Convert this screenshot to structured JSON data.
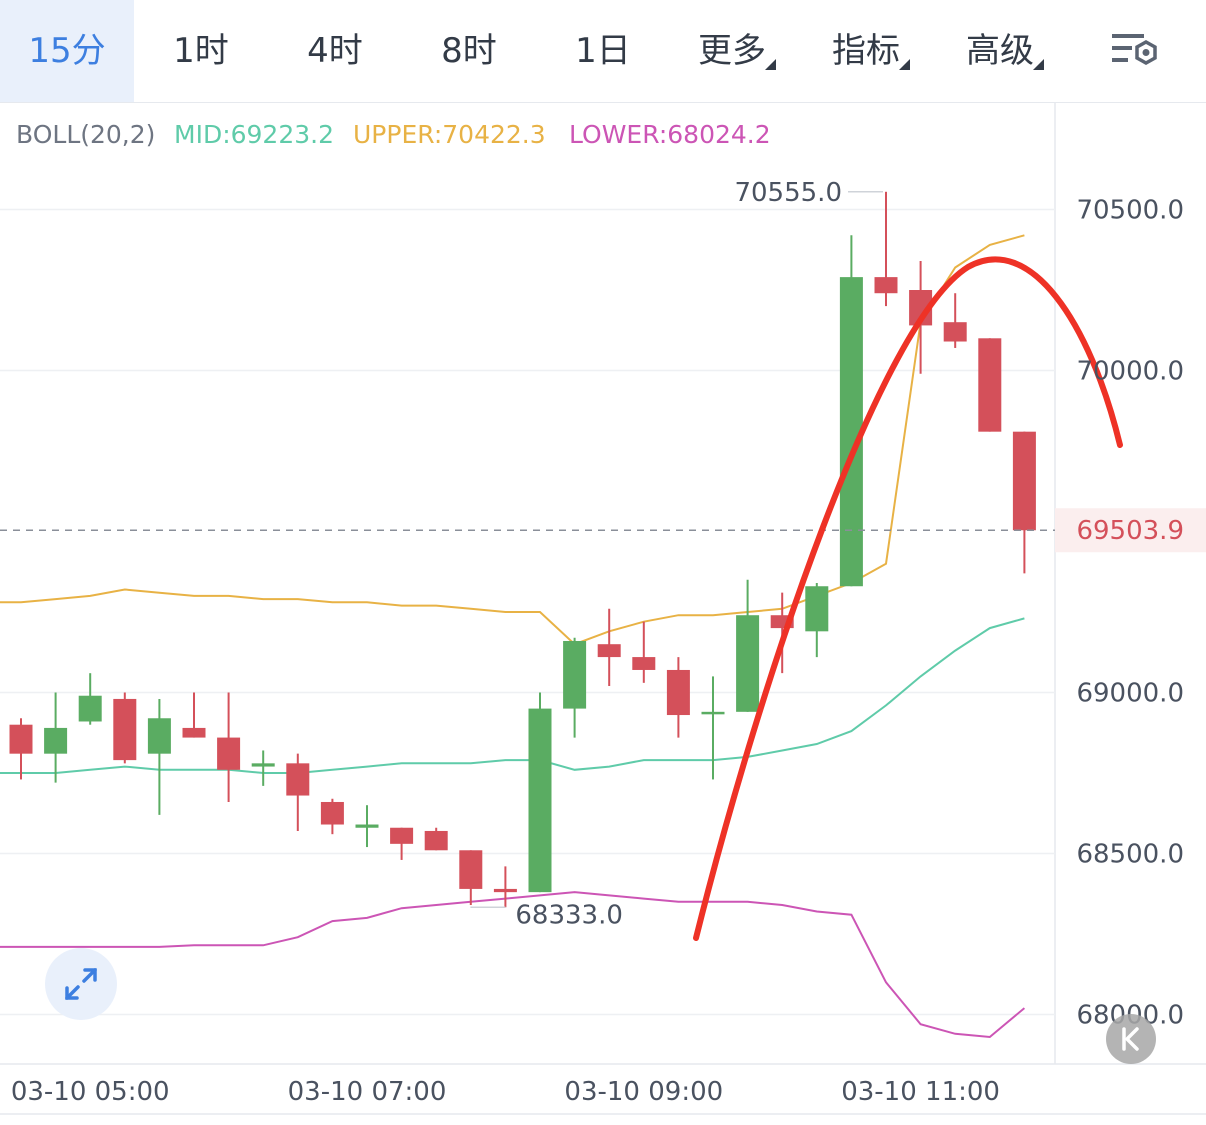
{
  "tabs": [
    {
      "label": "15分",
      "active": true,
      "dropdown": false
    },
    {
      "label": "1时",
      "active": false,
      "dropdown": false
    },
    {
      "label": "4时",
      "active": false,
      "dropdown": false
    },
    {
      "label": "8时",
      "active": false,
      "dropdown": false
    },
    {
      "label": "1日",
      "active": false,
      "dropdown": false
    },
    {
      "label": "更多",
      "active": false,
      "dropdown": true
    },
    {
      "label": "指标",
      "active": false,
      "dropdown": true
    },
    {
      "label": "高级",
      "active": false,
      "dropdown": true
    }
  ],
  "icons": {
    "settings": "chart-settings-icon",
    "expand": "expand-arrows-icon",
    "k_button": "k-scroll-icon"
  },
  "colors": {
    "up": "#5aac62",
    "down": "#d4505a",
    "mid": "#5fcba9",
    "upper": "#e8b245",
    "lower": "#cc55b5",
    "price": "#d4505a",
    "annotation": "#ee3226",
    "accent": "#3d7fe0"
  },
  "chart_data": {
    "type": "candlestick",
    "indicator": {
      "name": "BOLL(20,2)",
      "mid_label": "MID:69223.2",
      "upper_label": "UPPER:70422.3",
      "lower_label": "LOWER:68024.2"
    },
    "y_ticks": [
      "70500.0",
      "70000.0",
      "69000.0",
      "68500.0",
      "68000.0"
    ],
    "y_tick_values": [
      70500,
      70000,
      69000,
      68500,
      68000
    ],
    "ylim": [
      67850,
      70750
    ],
    "x_ticks": [
      {
        "label": "03-10 05:00",
        "index": 2
      },
      {
        "label": "03-10 07:00",
        "index": 10
      },
      {
        "label": "03-10 09:00",
        "index": 18
      },
      {
        "label": "03-10 11:00",
        "index": 26
      }
    ],
    "current_price": 69503.9,
    "current_price_label": "69503.9",
    "high_marker": {
      "label": "70555.0",
      "value": 70555,
      "index": 25
    },
    "low_marker": {
      "label": "68333.0",
      "value": 68333,
      "index": 14
    },
    "candles": [
      {
        "o": 68900,
        "h": 68920,
        "l": 68730,
        "c": 68810
      },
      {
        "o": 68810,
        "h": 69000,
        "l": 68720,
        "c": 68890
      },
      {
        "o": 68910,
        "h": 69060,
        "l": 68900,
        "c": 68990
      },
      {
        "o": 68980,
        "h": 69000,
        "l": 68780,
        "c": 68790
      },
      {
        "o": 68810,
        "h": 68980,
        "l": 68620,
        "c": 68920
      },
      {
        "o": 68890,
        "h": 69000,
        "l": 68860,
        "c": 68860
      },
      {
        "o": 68860,
        "h": 69000,
        "l": 68660,
        "c": 68760
      },
      {
        "o": 68770,
        "h": 68820,
        "l": 68710,
        "c": 68780
      },
      {
        "o": 68780,
        "h": 68810,
        "l": 68570,
        "c": 68680
      },
      {
        "o": 68660,
        "h": 68670,
        "l": 68560,
        "c": 68590
      },
      {
        "o": 68580,
        "h": 68650,
        "l": 68520,
        "c": 68590
      },
      {
        "o": 68580,
        "h": 68580,
        "l": 68480,
        "c": 68530
      },
      {
        "o": 68570,
        "h": 68580,
        "l": 68510,
        "c": 68510
      },
      {
        "o": 68510,
        "h": 68510,
        "l": 68340,
        "c": 68390
      },
      {
        "o": 68390,
        "h": 68460,
        "l": 68333,
        "c": 68380
      },
      {
        "o": 68380,
        "h": 69000,
        "l": 68380,
        "c": 68950
      },
      {
        "o": 68950,
        "h": 69170,
        "l": 68860,
        "c": 69160
      },
      {
        "o": 69150,
        "h": 69260,
        "l": 69020,
        "c": 69110
      },
      {
        "o": 69110,
        "h": 69220,
        "l": 69030,
        "c": 69070
      },
      {
        "o": 69070,
        "h": 69110,
        "l": 68860,
        "c": 68930
      },
      {
        "o": 68940,
        "h": 69050,
        "l": 68730,
        "c": 68940
      },
      {
        "o": 68940,
        "h": 69350,
        "l": 68940,
        "c": 69240
      },
      {
        "o": 69240,
        "h": 69310,
        "l": 69060,
        "c": 69200
      },
      {
        "o": 69190,
        "h": 69340,
        "l": 69110,
        "c": 69330
      },
      {
        "o": 69330,
        "h": 70420,
        "l": 69330,
        "c": 70290
      },
      {
        "o": 70290,
        "h": 70555,
        "l": 70200,
        "c": 70240
      },
      {
        "o": 70250,
        "h": 70340,
        "l": 69990,
        "c": 70140
      },
      {
        "o": 70150,
        "h": 70240,
        "l": 70070,
        "c": 70090
      },
      {
        "o": 70100,
        "h": 70100,
        "l": 69810,
        "c": 69810
      },
      {
        "o": 69810,
        "h": 69810,
        "l": 69370,
        "c": 69503.9
      }
    ],
    "boll_upper": [
      69280,
      69290,
      69300,
      69320,
      69310,
      69300,
      69300,
      69290,
      69290,
      69280,
      69280,
      69270,
      69270,
      69260,
      69250,
      69250,
      69150,
      69190,
      69220,
      69240,
      69240,
      69250,
      69260,
      69300,
      69340,
      69400,
      70150,
      70320,
      70390,
      70420
    ],
    "boll_mid": [
      68750,
      68750,
      68760,
      68770,
      68760,
      68760,
      68760,
      68750,
      68750,
      68760,
      68770,
      68780,
      68780,
      68780,
      68790,
      68790,
      68760,
      68770,
      68790,
      68790,
      68790,
      68800,
      68820,
      68840,
      68880,
      68960,
      69050,
      69130,
      69200,
      69230
    ],
    "boll_lower": [
      68210,
      68210,
      68210,
      68210,
      68210,
      68215,
      68215,
      68215,
      68240,
      68290,
      68300,
      68330,
      68340,
      68350,
      68360,
      68370,
      68380,
      68370,
      68360,
      68350,
      68350,
      68350,
      68340,
      68320,
      68310,
      68100,
      67970,
      67940,
      67930,
      68020
    ]
  }
}
